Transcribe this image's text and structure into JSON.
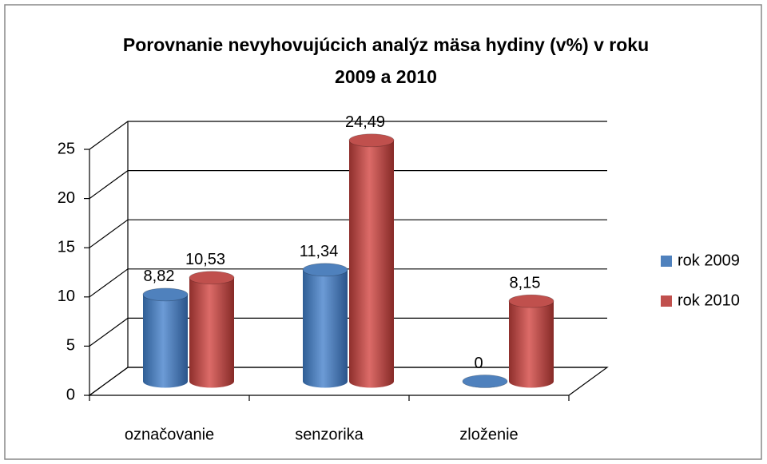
{
  "chart_data": {
    "type": "bar3d",
    "title": "Porovnanie nevyhovujúcich analýz mäsa hydiny (v%) v roku 2009 a 2010",
    "categories": [
      "označovanie",
      "senzorika",
      "zloženie"
    ],
    "series": [
      {
        "name": "rok 2009",
        "color": "#4f81bd",
        "values": [
          8.82,
          11.34,
          0
        ],
        "value_labels": [
          "8,82",
          "11,34",
          "0"
        ]
      },
      {
        "name": "rok 2010",
        "color": "#c0504d",
        "values": [
          10.53,
          24.49,
          8.15
        ],
        "value_labels": [
          "10,53",
          "24,49",
          "8,15"
        ]
      }
    ],
    "ylim": [
      0,
      25
    ],
    "yticks": [
      0,
      5,
      10,
      15,
      20,
      25
    ],
    "grid": true,
    "legend": "right"
  }
}
